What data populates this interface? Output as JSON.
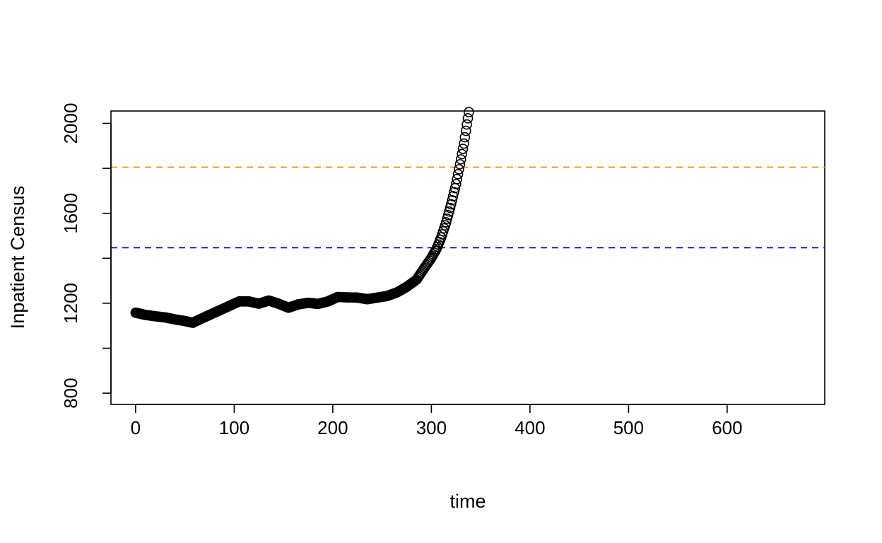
{
  "chart_data": {
    "type": "scatter",
    "title": "",
    "xlabel": "time",
    "ylabel": "Inpatient Census",
    "xlim": [
      -25,
      699
    ],
    "ylim": [
      750,
      2055
    ],
    "xticks": [
      0,
      100,
      200,
      300,
      400,
      500,
      600
    ],
    "yticks": [
      800,
      1000,
      1200,
      1400,
      1600,
      1800,
      2000
    ],
    "ytick_labels_shown": [
      "800",
      "1200",
      "1600",
      "2000"
    ],
    "grid": false,
    "legend": "none",
    "marker": "open-circle",
    "marker_color": "#000000",
    "hlines": [
      {
        "y": 1805,
        "color": "#FF8C00",
        "style": "dashed"
      },
      {
        "y": 1447,
        "color": "#0000CD",
        "style": "dashed"
      }
    ],
    "series": [
      {
        "x": [
          0,
          10,
          20,
          30,
          40,
          50,
          58,
          65,
          75,
          85,
          95,
          105,
          115,
          125,
          135,
          145,
          155,
          165,
          175,
          185,
          195,
          205,
          215,
          225,
          235,
          245,
          255,
          265,
          275,
          285,
          290,
          295,
          300,
          305,
          310,
          315,
          320,
          325,
          330,
          333,
          336,
          338
        ],
        "y": [
          1158,
          1148,
          1142,
          1137,
          1128,
          1121,
          1113,
          1128,
          1148,
          1168,
          1188,
          1208,
          1208,
          1198,
          1212,
          1198,
          1180,
          1195,
          1202,
          1197,
          1208,
          1228,
          1226,
          1225,
          1218,
          1225,
          1232,
          1248,
          1273,
          1305,
          1338,
          1370,
          1402,
          1440,
          1493,
          1560,
          1640,
          1730,
          1840,
          1910,
          1995,
          2050
        ]
      }
    ]
  }
}
